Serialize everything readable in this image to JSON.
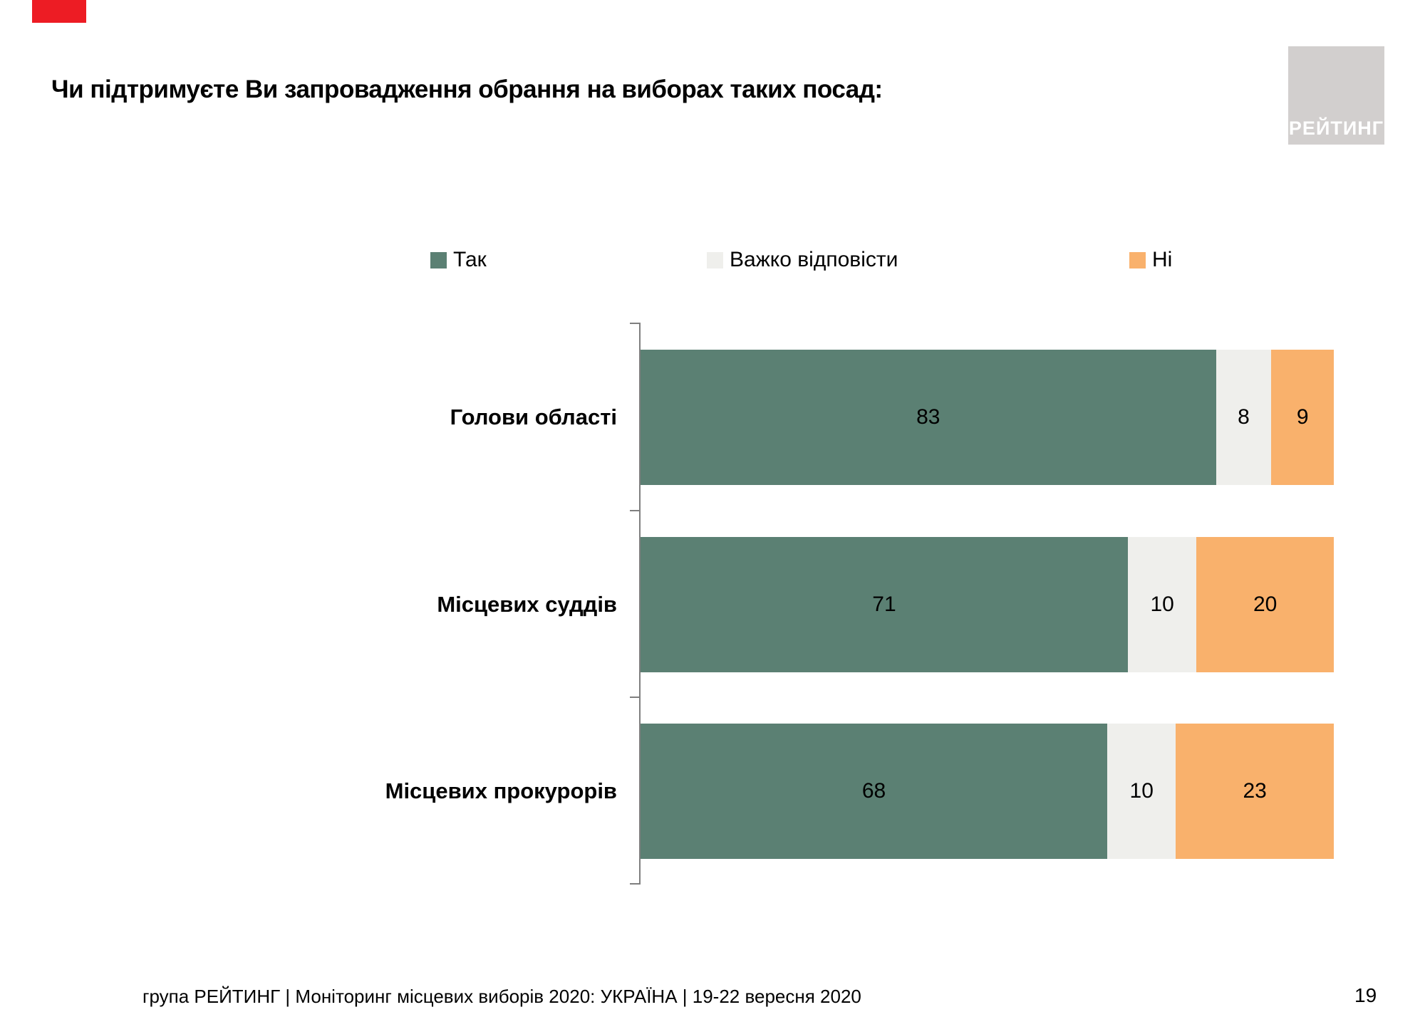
{
  "header": {
    "title": "Чи підтримуєте Ви запровадження обрання на виборах таких посад:",
    "logo_text": "РЕЙТИНГ"
  },
  "footer": {
    "source_line": "група РЕЙТИНГ | Моніторинг місцевих виборів 2020: УКРАЇНА | 19-22 вересня 2020",
    "page_number": "19"
  },
  "colors": {
    "accent_red": "#ED1C24",
    "logo_bg": "#D2CFCE",
    "axis": "#7F7F7F",
    "yes_green": "#5B8073",
    "neutral_gray": "#EFEFEC",
    "no_orange": "#F9B16C"
  },
  "chart_data": {
    "type": "bar",
    "orientation": "horizontal",
    "stacked": true,
    "normalized_percent": true,
    "legend_position": "top",
    "value_labels": "inside-center",
    "xlim": [
      0,
      100
    ],
    "categories": [
      "Голови області",
      "Місцевих суддів",
      "Місцевих прокурорів"
    ],
    "series": [
      {
        "name": "Так",
        "color": "#5B8073",
        "values": [
          83,
          71,
          68
        ]
      },
      {
        "name": "Важко відповісти",
        "color": "#EFEFEC",
        "values": [
          8,
          10,
          10
        ]
      },
      {
        "name": "Ні",
        "color": "#F9B16C",
        "values": [
          9,
          20,
          23
        ]
      }
    ]
  }
}
